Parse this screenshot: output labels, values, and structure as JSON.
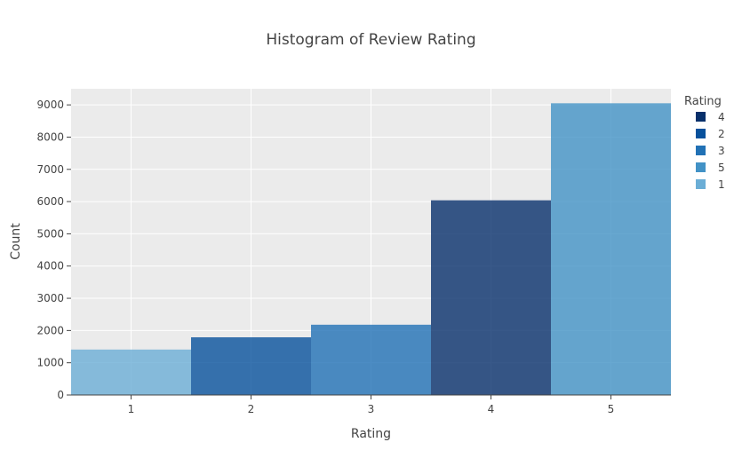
{
  "chart_data": {
    "type": "bar",
    "title": "Histogram of Review Rating",
    "xlabel": "Rating",
    "ylabel": "Count",
    "categories": [
      "1",
      "2",
      "3",
      "4",
      "5"
    ],
    "values": [
      1410,
      1790,
      2180,
      6040,
      9050
    ],
    "ylim": [
      0,
      9500
    ],
    "yticks": [
      0,
      1000,
      2000,
      3000,
      4000,
      5000,
      6000,
      7000,
      8000,
      9000
    ],
    "ytick_labels": [
      "0",
      "1000",
      "2000",
      "3000",
      "4000",
      "5000",
      "6000",
      "7000",
      "8000",
      "9000"
    ],
    "grid": true,
    "bargap": 0,
    "plot_background": "#ebebeb",
    "gridline_color": "#ffffff",
    "bar_opacity": 0.8,
    "series": [
      {
        "name": "4",
        "category": "4",
        "value": 6040,
        "color": "#08306b"
      },
      {
        "name": "2",
        "category": "2",
        "value": 1790,
        "color": "#08519c"
      },
      {
        "name": "3",
        "category": "3",
        "value": 2180,
        "color": "#2171b5"
      },
      {
        "name": "5",
        "category": "5",
        "value": 9050,
        "color": "#4292c6"
      },
      {
        "name": "1",
        "category": "1",
        "value": 1410,
        "color": "#6baed6"
      }
    ],
    "legend": {
      "title": "Rating",
      "placement": "right",
      "items": [
        "4",
        "2",
        "3",
        "5",
        "1"
      ]
    }
  }
}
